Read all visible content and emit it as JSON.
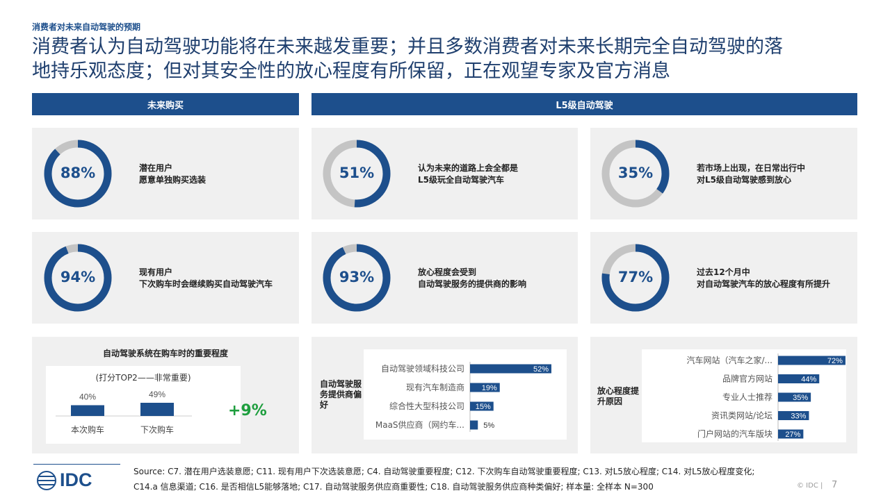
{
  "header": {
    "kicker": "消费者对未来自动驾驶的预期",
    "headline_line1": "消费者认为自动驾驶功能将在未来越发重要；并且多数消费者对未来长期完全自动驾驶的落",
    "headline_line2": "地持乐观态度；但对其安全性的放心程度有所保留，正在观望专家及官方消息"
  },
  "bands": {
    "left": "未来购买",
    "right": "L5级自动驾驶"
  },
  "cards": [
    {
      "pct_label": "88%",
      "value": 88,
      "line1": "潜在用户",
      "line2": "愿意单独购买选装"
    },
    {
      "pct_label": "51%",
      "value": 51,
      "line1": "认为未来的道路上会全都是",
      "line2": "L5级玩全自动驾驶汽车"
    },
    {
      "pct_label": "35%",
      "value": 35,
      "line1": "若市场上出现，在日常出行中",
      "line2": "对L5级自动驾驶感到放心"
    },
    {
      "pct_label": "94%",
      "value": 94,
      "line1": "现有用户",
      "line2": "下次购车时会继续购买自动驾驶汽车"
    },
    {
      "pct_label": "93%",
      "value": 93,
      "line1": "放心程度会受到",
      "line2": "自动驾驶服务的提供商的影响"
    },
    {
      "pct_label": "77%",
      "value": 77,
      "line1": "过去12个月中",
      "line2": "对自动驾驶汽车的放心程度有所提升"
    }
  ],
  "colors": {
    "primary": "#1d4f8c",
    "ring_bg": "#c4c4c4",
    "panel_bg": "#f0f0f0",
    "positive": "#1e9e3e"
  },
  "chart_data": [
    {
      "type": "bar",
      "title": "自动驾驶系统在购车时的重要程度",
      "subtitle": "(打分TOP2——非常重要)",
      "categories": [
        "本次购车",
        "下次购车"
      ],
      "values": [
        40,
        49
      ],
      "value_labels": [
        "40%",
        "49%"
      ],
      "delta_label": "+9%",
      "ylim": [
        0,
        100
      ]
    },
    {
      "type": "bar",
      "orientation": "horizontal",
      "side_label": "自动驾驶服务提供商偏好",
      "categories": [
        "自动驾驶领域科技公司",
        "现有汽车制造商",
        "综合性大型科技公司",
        "MaaS供应商（网约车..."
      ],
      "values": [
        52,
        19,
        15,
        5
      ],
      "value_labels": [
        "52%",
        "19%",
        "15%",
        "5%"
      ],
      "xlim": [
        0,
        60
      ]
    },
    {
      "type": "bar",
      "orientation": "horizontal",
      "side_label": "放心程度提升原因",
      "categories": [
        "汽车网站（汽车之家/...",
        "品牌官方网站",
        "专业人士推荐",
        "资讯类网站/论坛",
        "门户网站的汽车版块"
      ],
      "values": [
        72,
        44,
        35,
        33,
        27
      ],
      "value_labels": [
        "72%",
        "44%",
        "35%",
        "33%",
        "27%"
      ],
      "xlim": [
        0,
        75
      ]
    }
  ],
  "footer": {
    "source_line1": "Source: C7. 潜在用户选装意愿; C11. 现有用户下次选装意愿; C4. 自动驾驶重要程度; C12. 下次购车自动驾驶重要程度; C13. 对L5放心程度; C14. 对L5放心程度变化;",
    "source_line2": "C14.a 信息渠道; C16. 是否相信L5能够落地; C17. 自动驾驶服务供应商重要性; C18. 自动驾驶服务供应商种类偏好; 样本量: 全样本 N=300",
    "logo": "IDC",
    "copyright": "© IDC |",
    "page": "7"
  }
}
